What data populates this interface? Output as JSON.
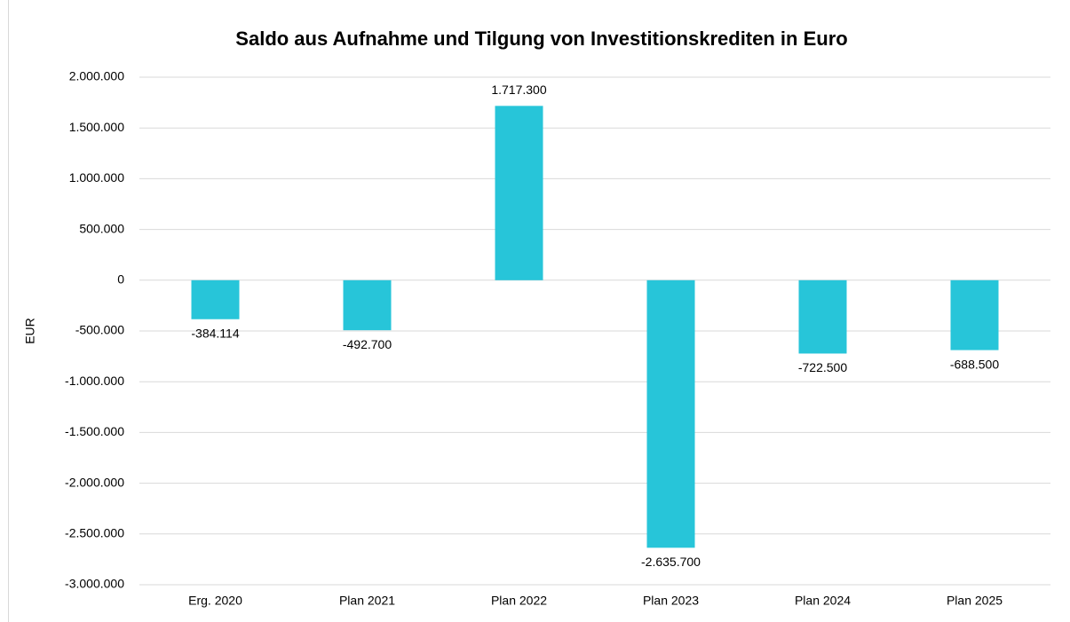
{
  "chart_data": {
    "type": "bar",
    "title": "Saldo aus Aufnahme und Tilgung von Investitionskrediten in Euro",
    "ylabel": "EUR",
    "categories": [
      "Erg. 2020",
      "Plan 2021",
      "Plan 2022",
      "Plan 2023",
      "Plan 2024",
      "Plan 2025"
    ],
    "values": [
      -384114,
      -492700,
      1717300,
      -2635700,
      -722500,
      -688500
    ],
    "value_labels": [
      "-384.114",
      "-492.700",
      "1.717.300",
      "-2.635.700",
      "-722.500",
      "-688.500"
    ],
    "color": "#27c5d9",
    "ylim": [
      -3000000,
      2000000
    ],
    "yticks": [
      {
        "value": -3000000,
        "label": "-3.000.000"
      },
      {
        "value": -2500000,
        "label": "-2.500.000"
      },
      {
        "value": -2000000,
        "label": "-2.000.000"
      },
      {
        "value": -1500000,
        "label": "-1.500.000"
      },
      {
        "value": -1000000,
        "label": "-1.000.000"
      },
      {
        "value": -500000,
        "label": "-500.000"
      },
      0,
      {
        "value": 500000,
        "label": "500.000"
      },
      {
        "value": 1000000,
        "label": "1.000.000"
      },
      {
        "value": 1500000,
        "label": "1.500.000"
      },
      {
        "value": 2000000,
        "label": "2.000.000"
      }
    ],
    "grid": true
  }
}
